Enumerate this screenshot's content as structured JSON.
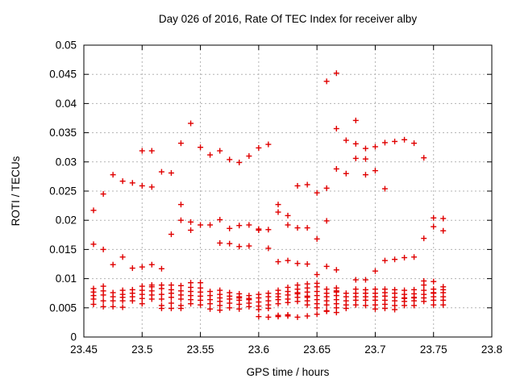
{
  "chart_data": {
    "type": "scatter",
    "title": "Day 026 of 2016, Rate Of TEC Index for receiver alby",
    "xlabel": "GPS time / hours",
    "ylabel": "ROTI / TECUs",
    "xlim": [
      23.45,
      23.8
    ],
    "ylim": [
      0,
      0.05
    ],
    "xtick_labels": [
      "23.45",
      "23.5",
      "23.55",
      "23.6",
      "23.65",
      "23.7",
      "23.75",
      "23.8"
    ],
    "xtick_values": [
      23.45,
      23.5,
      23.55,
      23.6,
      23.65,
      23.7,
      23.75,
      23.8
    ],
    "ytick_labels": [
      "0",
      "0.005",
      "0.01",
      "0.015",
      "0.02",
      "0.025",
      "0.03",
      "0.035",
      "0.04",
      "0.045",
      "0.05"
    ],
    "ytick_values": [
      0,
      0.005,
      0.01,
      0.015,
      0.02,
      0.025,
      0.03,
      0.035,
      0.04,
      0.045,
      0.05
    ],
    "grid": "dotted",
    "legend": "none",
    "marker": "plus",
    "marker_color": "#e00000",
    "grid_color": "#b3b3b3",
    "border_color": "#000000",
    "columns": [
      {
        "t": 23.4583,
        "v": [
          0.0217,
          0.0159,
          0.0083,
          0.0077,
          0.0071,
          0.0065,
          0.0056
        ]
      },
      {
        "t": 23.4667,
        "v": [
          0.0245,
          0.015,
          0.0087,
          0.0079,
          0.0072,
          0.0062,
          0.0052
        ]
      },
      {
        "t": 23.475,
        "v": [
          0.0278,
          0.0124,
          0.0076,
          0.0069,
          0.0062,
          0.0052
        ]
      },
      {
        "t": 23.4833,
        "v": [
          0.0267,
          0.0137,
          0.008,
          0.0073,
          0.0068,
          0.0062,
          0.0051
        ]
      },
      {
        "t": 23.4917,
        "v": [
          0.0264,
          0.0118,
          0.0081,
          0.0075,
          0.0069,
          0.0062
        ]
      },
      {
        "t": 23.5,
        "v": [
          0.0319,
          0.0259,
          0.012,
          0.0087,
          0.008,
          0.0073,
          0.0066,
          0.0057
        ]
      },
      {
        "t": 23.5083,
        "v": [
          0.0319,
          0.0257,
          0.0124,
          0.0089,
          0.0086,
          0.0079,
          0.0072,
          0.0065
        ]
      },
      {
        "t": 23.5167,
        "v": [
          0.0283,
          0.0117,
          0.0089,
          0.0083,
          0.0073,
          0.0065,
          0.0054,
          0.0049
        ]
      },
      {
        "t": 23.525,
        "v": [
          0.0281,
          0.0176,
          0.0089,
          0.0081,
          0.0075,
          0.0068,
          0.0058,
          0.0049
        ]
      },
      {
        "t": 23.5333,
        "v": [
          0.0332,
          0.0227,
          0.02,
          0.0088,
          0.0079,
          0.0072,
          0.0065,
          0.0054,
          0.0049
        ]
      },
      {
        "t": 23.5417,
        "v": [
          0.0366,
          0.0197,
          0.0183,
          0.0093,
          0.0085,
          0.0078,
          0.0071,
          0.0064,
          0.0057
        ]
      },
      {
        "t": 23.55,
        "v": [
          0.0325,
          0.0192,
          0.0093,
          0.0084,
          0.0077,
          0.007,
          0.0063,
          0.0055
        ]
      },
      {
        "t": 23.5583,
        "v": [
          0.0312,
          0.0192,
          0.0078,
          0.0071,
          0.0064,
          0.0057,
          0.0048
        ]
      },
      {
        "t": 23.5667,
        "v": [
          0.0319,
          0.0201,
          0.0161,
          0.008,
          0.0073,
          0.0067,
          0.0061,
          0.0054,
          0.0046
        ]
      },
      {
        "t": 23.575,
        "v": [
          0.0304,
          0.0186,
          0.016,
          0.0076,
          0.007,
          0.0065,
          0.0058,
          0.005
        ]
      },
      {
        "t": 23.5833,
        "v": [
          0.0299,
          0.0191,
          0.0155,
          0.0074,
          0.0069,
          0.0067,
          0.0063,
          0.0056,
          0.0048
        ]
      },
      {
        "t": 23.5917,
        "v": [
          0.031,
          0.0192,
          0.0156,
          0.0071,
          0.0066,
          0.0064,
          0.0058,
          0.0052
        ]
      },
      {
        "t": 23.6,
        "v": [
          0.0324,
          0.0185,
          0.0183,
          0.0073,
          0.0067,
          0.006,
          0.0053,
          0.0047,
          0.0035
        ]
      },
      {
        "t": 23.6083,
        "v": [
          0.033,
          0.0184,
          0.0152,
          0.0075,
          0.0069,
          0.0062,
          0.0055,
          0.0049,
          0.0034
        ]
      },
      {
        "t": 23.6167,
        "v": [
          0.0227,
          0.0214,
          0.0129,
          0.008,
          0.0074,
          0.0069,
          0.0064,
          0.0057,
          0.0037,
          0.0035
        ]
      },
      {
        "t": 23.625,
        "v": [
          0.0208,
          0.0192,
          0.0131,
          0.0085,
          0.0078,
          0.0072,
          0.0065,
          0.0059,
          0.0038,
          0.0036
        ]
      },
      {
        "t": 23.6333,
        "v": [
          0.0259,
          0.0187,
          0.0126,
          0.0089,
          0.0082,
          0.0076,
          0.0074,
          0.0068,
          0.0061,
          0.0034
        ]
      },
      {
        "t": 23.6417,
        "v": [
          0.0261,
          0.0187,
          0.0125,
          0.0091,
          0.0084,
          0.0077,
          0.007,
          0.0068,
          0.0062,
          0.0055,
          0.0036
        ]
      },
      {
        "t": 23.65,
        "v": [
          0.0247,
          0.0168,
          0.0107,
          0.0092,
          0.0086,
          0.0078,
          0.0071,
          0.0064,
          0.0057,
          0.005,
          0.0039
        ]
      },
      {
        "t": 23.6583,
        "v": [
          0.0438,
          0.0255,
          0.0199,
          0.0121,
          0.0082,
          0.0075,
          0.0069,
          0.0062,
          0.0055,
          0.0045,
          0.0044
        ]
      },
      {
        "t": 23.6667,
        "v": [
          0.0452,
          0.0357,
          0.0288,
          0.0115,
          0.0084,
          0.0079,
          0.0077,
          0.0071,
          0.0064,
          0.0057,
          0.005,
          0.0042
        ]
      },
      {
        "t": 23.675,
        "v": [
          0.0337,
          0.028,
          0.0075,
          0.0069,
          0.0062,
          0.0055,
          0.0049
        ]
      },
      {
        "t": 23.6833,
        "v": [
          0.0371,
          0.0331,
          0.0306,
          0.0098,
          0.0082,
          0.0075,
          0.0069,
          0.0063,
          0.0055
        ]
      },
      {
        "t": 23.6917,
        "v": [
          0.0323,
          0.0305,
          0.0278,
          0.0098,
          0.0081,
          0.0075,
          0.0069,
          0.0063,
          0.0054
        ]
      },
      {
        "t": 23.7,
        "v": [
          0.0326,
          0.0285,
          0.0113,
          0.0082,
          0.0075,
          0.0069,
          0.0063,
          0.0055,
          0.0048
        ]
      },
      {
        "t": 23.7083,
        "v": [
          0.0333,
          0.0254,
          0.0131,
          0.0082,
          0.0076,
          0.007,
          0.0063,
          0.0056,
          0.0049
        ]
      },
      {
        "t": 23.7167,
        "v": [
          0.0335,
          0.0133,
          0.0081,
          0.0075,
          0.0068,
          0.0062,
          0.0054,
          0.0047
        ]
      },
      {
        "t": 23.725,
        "v": [
          0.0338,
          0.0136,
          0.008,
          0.0073,
          0.0067,
          0.0066,
          0.0061,
          0.0054
        ]
      },
      {
        "t": 23.7333,
        "v": [
          0.0332,
          0.0137,
          0.0081,
          0.0074,
          0.0068,
          0.0067,
          0.0062,
          0.0054
        ]
      },
      {
        "t": 23.7417,
        "v": [
          0.0307,
          0.0169,
          0.0096,
          0.0089,
          0.008,
          0.0073,
          0.0067,
          0.0061
        ]
      },
      {
        "t": 23.75,
        "v": [
          0.0204,
          0.0189,
          0.0095,
          0.0082,
          0.0076,
          0.0075,
          0.0069,
          0.0063,
          0.0055
        ]
      },
      {
        "t": 23.7583,
        "v": [
          0.0203,
          0.0182,
          0.0086,
          0.0081,
          0.0076,
          0.0069,
          0.0063,
          0.0055
        ]
      }
    ]
  }
}
